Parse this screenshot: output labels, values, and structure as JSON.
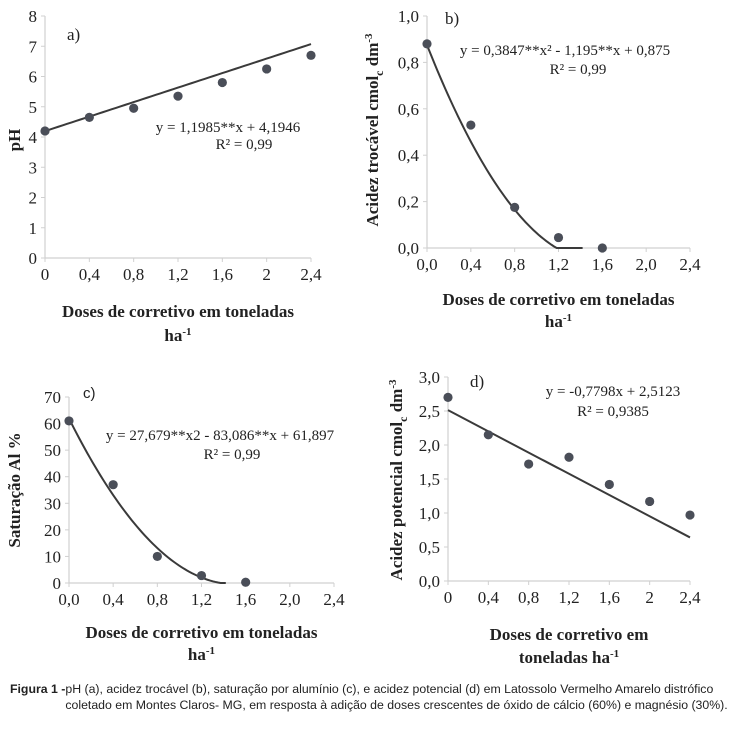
{
  "chart_data": [
    {
      "id": "a",
      "type": "scatter",
      "panel_label": "a)",
      "x": [
        0,
        0.4,
        0.8,
        1.2,
        1.6,
        2,
        2.4
      ],
      "y": [
        4.2,
        4.65,
        4.95,
        5.35,
        5.8,
        6.25,
        6.7
      ],
      "fit": {
        "kind": "linear",
        "coef": [
          4.1946,
          1.1985
        ],
        "xrange": [
          0,
          2.4
        ]
      },
      "equation": "y = 1,1985**x + 4,1946",
      "r2": "R² = 0,99",
      "xticks": [
        "0",
        "0,4",
        "0,8",
        "1,2",
        "1,6",
        "2",
        "2,4"
      ],
      "xtick_values": [
        0,
        0.4,
        0.8,
        1.2,
        1.6,
        2,
        2.4
      ],
      "yticks": [
        "0",
        "1",
        "2",
        "3",
        "4",
        "5",
        "6",
        "7",
        "8"
      ],
      "ytick_values": [
        0,
        1,
        2,
        3,
        4,
        5,
        6,
        7,
        8
      ],
      "xlim": [
        0,
        2.4
      ],
      "ylim": [
        0,
        8
      ],
      "xlabel": [
        "Doses de corretivo em toneladas",
        "ha",
        "-1"
      ],
      "ylabel": "pH",
      "grid": false
    },
    {
      "id": "b",
      "type": "scatter",
      "panel_label": "b)",
      "x": [
        0,
        0.4,
        0.8,
        1.2,
        1.6
      ],
      "y": [
        0.88,
        0.53,
        0.175,
        0.045,
        0.0
      ],
      "fit": {
        "kind": "quadratic",
        "coef": [
          0.875,
          -1.195,
          0.3847
        ],
        "xrange": [
          0,
          1.42
        ]
      },
      "equation": "y = 0,3847**x² - 1,195**x + 0,875",
      "r2": "R² = 0,99",
      "xticks": [
        "0,0",
        "0,4",
        "0,8",
        "1,2",
        "1,6",
        "2,0",
        "2,4"
      ],
      "xtick_values": [
        0,
        0.4,
        0.8,
        1.2,
        1.6,
        2.0,
        2.4
      ],
      "yticks": [
        "0,0",
        "0,2",
        "0,4",
        "0,6",
        "0,8",
        "1,0"
      ],
      "ytick_values": [
        0,
        0.2,
        0.4,
        0.6,
        0.8,
        1.0
      ],
      "xlim": [
        0,
        2.4
      ],
      "ylim": [
        0,
        1.0
      ],
      "xlabel": [
        "Doses de corretivo em toneladas",
        "ha",
        "-1"
      ],
      "ylabel": "Acidez trocável cmol_c dm⁻³",
      "ylabel_parts": [
        "Acidez trocável cmol",
        "c",
        " dm",
        "-3"
      ],
      "grid": false
    },
    {
      "id": "c",
      "type": "scatter",
      "panel_label": "c)",
      "x": [
        0,
        0.4,
        0.8,
        1.2,
        1.6
      ],
      "y": [
        61,
        37,
        10,
        2.8,
        0.3
      ],
      "fit": {
        "kind": "quadratic",
        "coef": [
          61.897,
          -83.086,
          27.679
        ],
        "xrange": [
          0,
          1.42
        ]
      },
      "equation": "y = 27,679**x2 - 83,086**x + 61,897",
      "r2": "R² = 0,99",
      "xticks": [
        "0,0",
        "0,4",
        "0,8",
        "1,2",
        "1,6",
        "2,0",
        "2,4"
      ],
      "xtick_values": [
        0,
        0.4,
        0.8,
        1.2,
        1.6,
        2.0,
        2.4
      ],
      "yticks": [
        "0",
        "10",
        "20",
        "30",
        "40",
        "50",
        "60",
        "70"
      ],
      "ytick_values": [
        0,
        10,
        20,
        30,
        40,
        50,
        60,
        70
      ],
      "xlim": [
        0,
        2.4
      ],
      "ylim": [
        0,
        70
      ],
      "xlabel": [
        "Doses de corretivo em toneladas",
        "ha",
        "-1"
      ],
      "ylabel": "Saturação Al %",
      "grid": false
    },
    {
      "id": "d",
      "type": "scatter",
      "panel_label": "d)",
      "x": [
        0,
        0.4,
        0.8,
        1.2,
        1.6,
        2,
        2.4
      ],
      "y": [
        2.7,
        2.15,
        1.72,
        1.82,
        1.42,
        1.17,
        0.97
      ],
      "fit": {
        "kind": "linear",
        "coef": [
          2.5123,
          -0.7798
        ],
        "xrange": [
          0,
          2.4
        ]
      },
      "equation": "y = -0,7798x + 2,5123",
      "r2": "R² = 0,9385",
      "xticks": [
        "0",
        "0,4",
        "0,8",
        "1,2",
        "1,6",
        "2",
        "2,4"
      ],
      "xtick_values": [
        0,
        0.4,
        0.8,
        1.2,
        1.6,
        2,
        2.4
      ],
      "yticks": [
        "0,0",
        "0,5",
        "1,0",
        "1,5",
        "2,0",
        "2,5",
        "3,0"
      ],
      "ytick_values": [
        0,
        0.5,
        1.0,
        1.5,
        2.0,
        2.5,
        3.0
      ],
      "xlim": [
        0,
        2.4
      ],
      "ylim": [
        0,
        3.0
      ],
      "xlabel": [
        "Doses de corretivo em",
        "toneladas ha",
        "-1"
      ],
      "ylabel": "Acidez potencial cmol_c dm⁻³",
      "ylabel_parts": [
        "Acidez potencial cmol",
        "c",
        " dm",
        "-3"
      ],
      "grid": false
    }
  ],
  "caption": {
    "label": "Figura 1",
    "separator": " - ",
    "text": "pH (a), acidez trocável (b), saturação por alumínio (c), e acidez potencial (d) em Latossolo Vermelho Amarelo distrófico coletado em Montes Claros- MG, em resposta à adição de doses crescentes de óxido de cálcio (60%) e magnésio (30%)."
  },
  "colors": {
    "marker": "#4a4e58",
    "line": "#3a3a3a",
    "axis": "#d0d0d0",
    "text": "#222222"
  }
}
